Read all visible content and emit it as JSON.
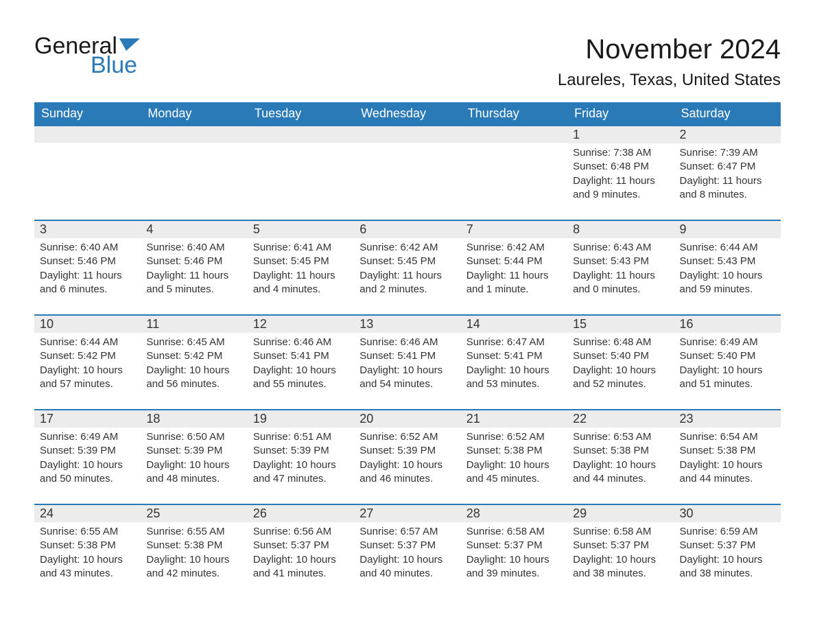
{
  "logo": {
    "text_left": "General",
    "text_right": "Blue",
    "flag_color": "#2a7ab8"
  },
  "title": "November 2024",
  "location": "Laureles, Texas, United States",
  "colors": {
    "header_bg": "#2a7ab8",
    "header_text": "#ffffff",
    "daynum_bg": "#ececec",
    "border": "#2a7ab8",
    "body_text": "#333333",
    "page_bg": "#ffffff"
  },
  "typography": {
    "title_fontsize": 40,
    "location_fontsize": 24,
    "header_fontsize": 18,
    "daynum_fontsize": 18,
    "body_fontsize": 15
  },
  "weekdays": [
    "Sunday",
    "Monday",
    "Tuesday",
    "Wednesday",
    "Thursday",
    "Friday",
    "Saturday"
  ],
  "weeks": [
    [
      null,
      null,
      null,
      null,
      null,
      {
        "n": "1",
        "sunrise": "Sunrise: 7:38 AM",
        "sunset": "Sunset: 6:48 PM",
        "daylight": "Daylight: 11 hours and 9 minutes."
      },
      {
        "n": "2",
        "sunrise": "Sunrise: 7:39 AM",
        "sunset": "Sunset: 6:47 PM",
        "daylight": "Daylight: 11 hours and 8 minutes."
      }
    ],
    [
      {
        "n": "3",
        "sunrise": "Sunrise: 6:40 AM",
        "sunset": "Sunset: 5:46 PM",
        "daylight": "Daylight: 11 hours and 6 minutes."
      },
      {
        "n": "4",
        "sunrise": "Sunrise: 6:40 AM",
        "sunset": "Sunset: 5:46 PM",
        "daylight": "Daylight: 11 hours and 5 minutes."
      },
      {
        "n": "5",
        "sunrise": "Sunrise: 6:41 AM",
        "sunset": "Sunset: 5:45 PM",
        "daylight": "Daylight: 11 hours and 4 minutes."
      },
      {
        "n": "6",
        "sunrise": "Sunrise: 6:42 AM",
        "sunset": "Sunset: 5:45 PM",
        "daylight": "Daylight: 11 hours and 2 minutes."
      },
      {
        "n": "7",
        "sunrise": "Sunrise: 6:42 AM",
        "sunset": "Sunset: 5:44 PM",
        "daylight": "Daylight: 11 hours and 1 minute."
      },
      {
        "n": "8",
        "sunrise": "Sunrise: 6:43 AM",
        "sunset": "Sunset: 5:43 PM",
        "daylight": "Daylight: 11 hours and 0 minutes."
      },
      {
        "n": "9",
        "sunrise": "Sunrise: 6:44 AM",
        "sunset": "Sunset: 5:43 PM",
        "daylight": "Daylight: 10 hours and 59 minutes."
      }
    ],
    [
      {
        "n": "10",
        "sunrise": "Sunrise: 6:44 AM",
        "sunset": "Sunset: 5:42 PM",
        "daylight": "Daylight: 10 hours and 57 minutes."
      },
      {
        "n": "11",
        "sunrise": "Sunrise: 6:45 AM",
        "sunset": "Sunset: 5:42 PM",
        "daylight": "Daylight: 10 hours and 56 minutes."
      },
      {
        "n": "12",
        "sunrise": "Sunrise: 6:46 AM",
        "sunset": "Sunset: 5:41 PM",
        "daylight": "Daylight: 10 hours and 55 minutes."
      },
      {
        "n": "13",
        "sunrise": "Sunrise: 6:46 AM",
        "sunset": "Sunset: 5:41 PM",
        "daylight": "Daylight: 10 hours and 54 minutes."
      },
      {
        "n": "14",
        "sunrise": "Sunrise: 6:47 AM",
        "sunset": "Sunset: 5:41 PM",
        "daylight": "Daylight: 10 hours and 53 minutes."
      },
      {
        "n": "15",
        "sunrise": "Sunrise: 6:48 AM",
        "sunset": "Sunset: 5:40 PM",
        "daylight": "Daylight: 10 hours and 52 minutes."
      },
      {
        "n": "16",
        "sunrise": "Sunrise: 6:49 AM",
        "sunset": "Sunset: 5:40 PM",
        "daylight": "Daylight: 10 hours and 51 minutes."
      }
    ],
    [
      {
        "n": "17",
        "sunrise": "Sunrise: 6:49 AM",
        "sunset": "Sunset: 5:39 PM",
        "daylight": "Daylight: 10 hours and 50 minutes."
      },
      {
        "n": "18",
        "sunrise": "Sunrise: 6:50 AM",
        "sunset": "Sunset: 5:39 PM",
        "daylight": "Daylight: 10 hours and 48 minutes."
      },
      {
        "n": "19",
        "sunrise": "Sunrise: 6:51 AM",
        "sunset": "Sunset: 5:39 PM",
        "daylight": "Daylight: 10 hours and 47 minutes."
      },
      {
        "n": "20",
        "sunrise": "Sunrise: 6:52 AM",
        "sunset": "Sunset: 5:39 PM",
        "daylight": "Daylight: 10 hours and 46 minutes."
      },
      {
        "n": "21",
        "sunrise": "Sunrise: 6:52 AM",
        "sunset": "Sunset: 5:38 PM",
        "daylight": "Daylight: 10 hours and 45 minutes."
      },
      {
        "n": "22",
        "sunrise": "Sunrise: 6:53 AM",
        "sunset": "Sunset: 5:38 PM",
        "daylight": "Daylight: 10 hours and 44 minutes."
      },
      {
        "n": "23",
        "sunrise": "Sunrise: 6:54 AM",
        "sunset": "Sunset: 5:38 PM",
        "daylight": "Daylight: 10 hours and 44 minutes."
      }
    ],
    [
      {
        "n": "24",
        "sunrise": "Sunrise: 6:55 AM",
        "sunset": "Sunset: 5:38 PM",
        "daylight": "Daylight: 10 hours and 43 minutes."
      },
      {
        "n": "25",
        "sunrise": "Sunrise: 6:55 AM",
        "sunset": "Sunset: 5:38 PM",
        "daylight": "Daylight: 10 hours and 42 minutes."
      },
      {
        "n": "26",
        "sunrise": "Sunrise: 6:56 AM",
        "sunset": "Sunset: 5:37 PM",
        "daylight": "Daylight: 10 hours and 41 minutes."
      },
      {
        "n": "27",
        "sunrise": "Sunrise: 6:57 AM",
        "sunset": "Sunset: 5:37 PM",
        "daylight": "Daylight: 10 hours and 40 minutes."
      },
      {
        "n": "28",
        "sunrise": "Sunrise: 6:58 AM",
        "sunset": "Sunset: 5:37 PM",
        "daylight": "Daylight: 10 hours and 39 minutes."
      },
      {
        "n": "29",
        "sunrise": "Sunrise: 6:58 AM",
        "sunset": "Sunset: 5:37 PM",
        "daylight": "Daylight: 10 hours and 38 minutes."
      },
      {
        "n": "30",
        "sunrise": "Sunrise: 6:59 AM",
        "sunset": "Sunset: 5:37 PM",
        "daylight": "Daylight: 10 hours and 38 minutes."
      }
    ]
  ]
}
